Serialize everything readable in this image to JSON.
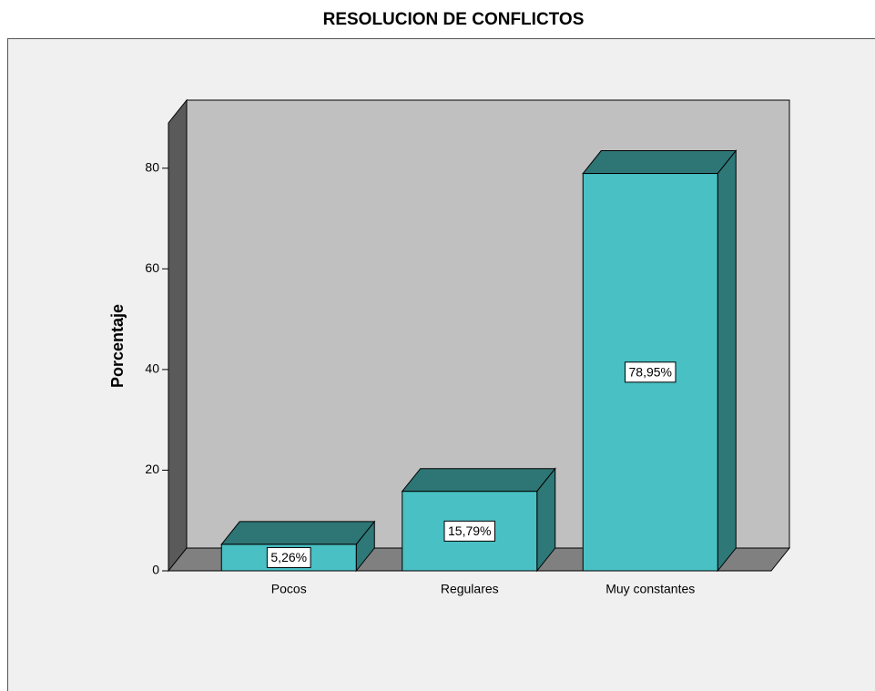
{
  "chart_data": {
    "type": "bar3d",
    "title": "RESOLUCION DE CONFLICTOS",
    "y_label": "Porcentaje",
    "categories": [
      "Pocos",
      "Regulares",
      "Muy constantes"
    ],
    "values": [
      5.26,
      15.79,
      78.95
    ],
    "value_labels": [
      "5,26%",
      "15,79%",
      "78,95%"
    ],
    "color": "#48c0c4",
    "ylim": [
      0,
      89
    ],
    "yticks": [
      0,
      20,
      40,
      60,
      80
    ]
  }
}
